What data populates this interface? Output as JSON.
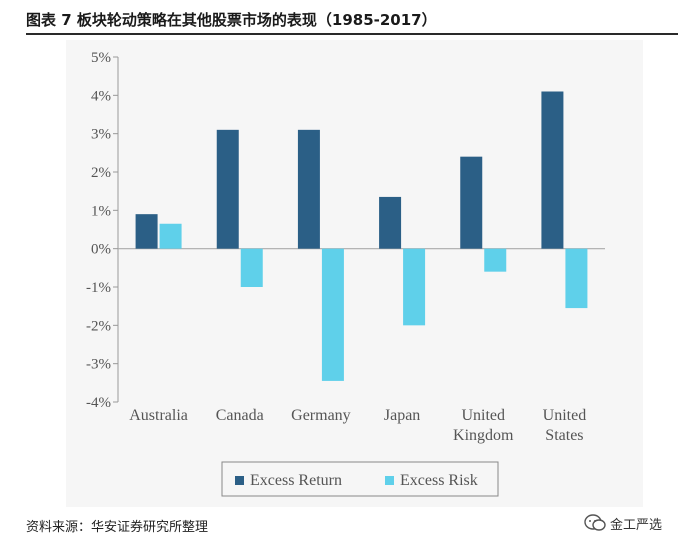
{
  "header": {
    "title": "图表 7 板块轮动策略在其他股票市场的表现（1985-2017）"
  },
  "footer": {
    "source": "资料来源：华安证券研究所整理",
    "logo_text": "金工严选"
  },
  "chart_data": {
    "type": "bar",
    "title": "",
    "categories": [
      "Australia",
      "Canada",
      "Germany",
      "Japan",
      "United Kingdom",
      "United States"
    ],
    "category_lines": [
      [
        "Australia"
      ],
      [
        "Canada"
      ],
      [
        "Germany"
      ],
      [
        "Japan"
      ],
      [
        "United",
        "Kingdom"
      ],
      [
        "United",
        "States"
      ]
    ],
    "series": [
      {
        "name": "Excess Return",
        "color": "#2b5f86",
        "values": [
          0.9,
          3.1,
          3.1,
          1.35,
          2.4,
          4.1
        ]
      },
      {
        "name": "Excess Risk",
        "color": "#5fd0ea",
        "values": [
          0.65,
          -1.0,
          -3.45,
          -2.0,
          -0.6,
          -1.55
        ]
      }
    ],
    "ylim": [
      -4,
      5
    ],
    "yticks": [
      5,
      4,
      3,
      2,
      1,
      0,
      -1,
      -2,
      -3,
      -4
    ],
    "ytick_labels": [
      "5%",
      "4%",
      "3%",
      "2%",
      "1%",
      "0%",
      "-1%",
      "-2%",
      "-3%",
      "-4%"
    ],
    "xlabel": "",
    "ylabel": "",
    "grid": false,
    "legend": "bottom"
  }
}
